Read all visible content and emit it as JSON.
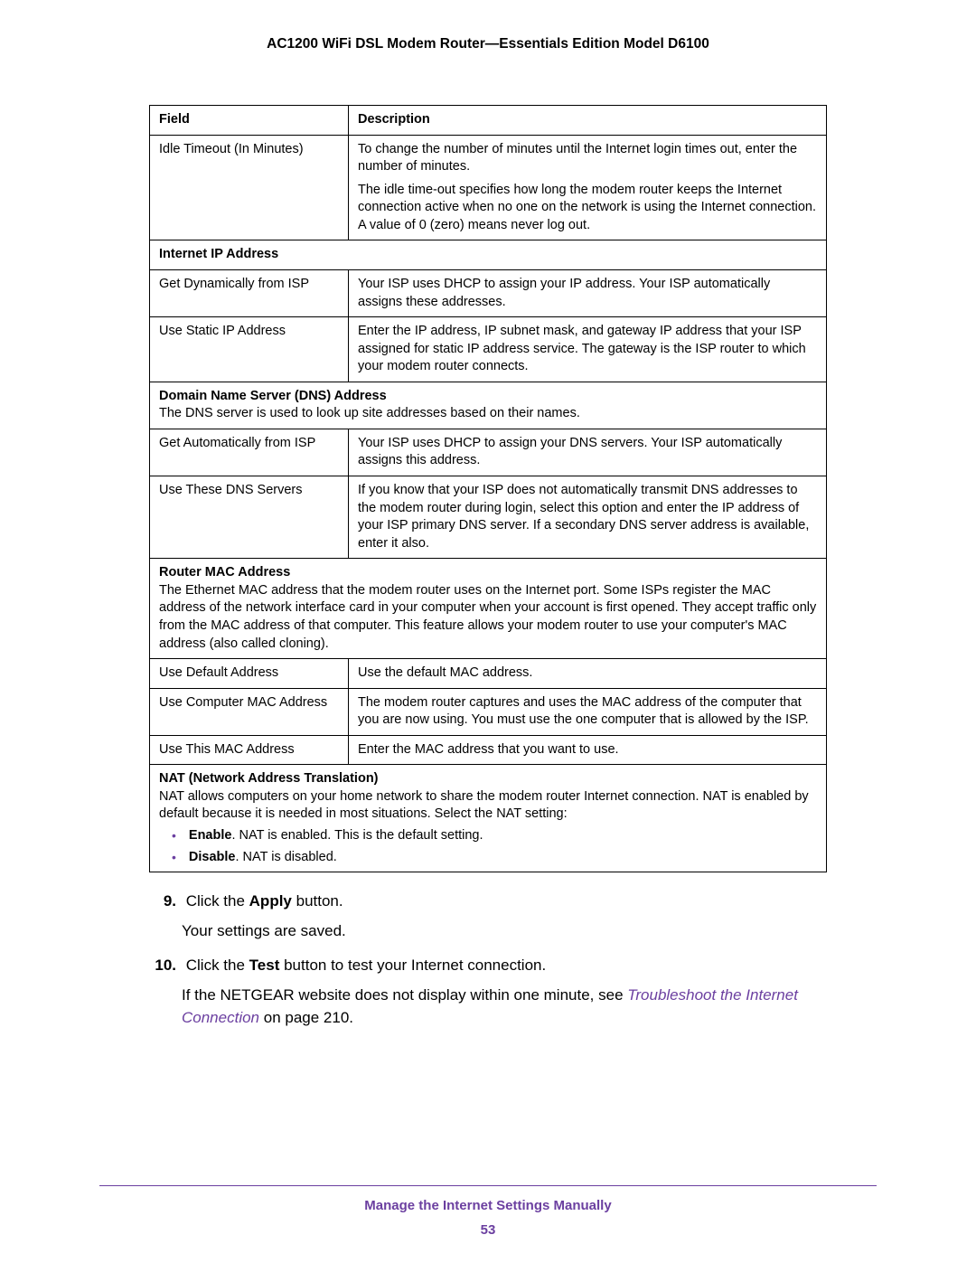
{
  "document": {
    "title": "AC1200 WiFi DSL Modem Router—Essentials Edition Model D6100",
    "footer_section": "Manage the Internet Settings Manually",
    "page_number": "53",
    "accent_color": "#6b3fa0"
  },
  "table": {
    "header_field": "Field",
    "header_description": "Description",
    "rows": [
      {
        "type": "row",
        "field": "Idle Timeout (In Minutes)",
        "desc_p1": "To change the number of minutes until the Internet login times out, enter the number of minutes.",
        "desc_p2": "The idle time-out specifies how long the modem router keeps the Internet connection active when no one on the network is using the Internet connection. A value of 0 (zero) means never log out."
      },
      {
        "type": "section",
        "title": "Internet IP Address",
        "body": ""
      },
      {
        "type": "row",
        "field": "Get Dynamically from ISP",
        "desc_p1": "Your ISP uses DHCP to assign your IP address. Your ISP automatically assigns these addresses."
      },
      {
        "type": "row",
        "field": "Use Static IP Address",
        "desc_p1": "Enter the IP address, IP subnet mask, and gateway IP address that your ISP assigned for static IP address service. The gateway is the ISP router to which your modem router connects."
      },
      {
        "type": "section",
        "title": "Domain Name Server (DNS) Address",
        "body": "The DNS server is used to look up site addresses based on their names."
      },
      {
        "type": "row",
        "field": "Get Automatically from ISP",
        "desc_p1": "Your ISP uses DHCP to assign your DNS servers. Your ISP automatically assigns this address."
      },
      {
        "type": "row",
        "field": "Use These DNS Servers",
        "desc_p1": "If you know that your ISP does not automatically transmit DNS addresses to the modem router during login, select this option and enter the IP address of your ISP primary DNS server. If a secondary DNS server address is available, enter it also."
      },
      {
        "type": "section",
        "title": "Router MAC Address",
        "body": "The Ethernet MAC address that the modem router uses on the Internet port. Some ISPs register the MAC address of the network interface card in your computer when your account is first opened. They accept traffic only from the MAC address of that computer. This feature allows your modem router to use your computer's MAC address (also called cloning)."
      },
      {
        "type": "row",
        "field": "Use Default Address",
        "desc_p1": "Use the default MAC address."
      },
      {
        "type": "row",
        "field": "Use Computer MAC Address",
        "desc_p1": "The modem router captures and uses the MAC address of the computer that you are now using. You must use the one computer that is allowed by the ISP."
      },
      {
        "type": "row",
        "field": "Use This MAC Address",
        "desc_p1": "Enter the MAC address that you want to use."
      },
      {
        "type": "nat_section",
        "title": "NAT (Network Address Translation)",
        "body": "NAT allows computers on your home network to share the modem router Internet connection. NAT is enabled by default because it is needed in most situations. Select the NAT setting:",
        "bullets": [
          {
            "bold": "Enable",
            "text": ". NAT is enabled. This is the default setting."
          },
          {
            "bold": "Disable",
            "text": ". NAT is disabled."
          }
        ]
      }
    ]
  },
  "steps": {
    "s9_num": "9.",
    "s9_pre": "Click the ",
    "s9_bold": "Apply",
    "s9_post": " button.",
    "s9_follow": "Your settings are saved.",
    "s10_num": "10.",
    "s10_pre": "Click the ",
    "s10_bold": "Test",
    "s10_post": " button to test your Internet connection.",
    "s10_follow_pre": "If the NETGEAR website does not display within one minute, see ",
    "s10_link": "Troubleshoot the Internet Connection",
    "s10_follow_post": " on page 210."
  }
}
